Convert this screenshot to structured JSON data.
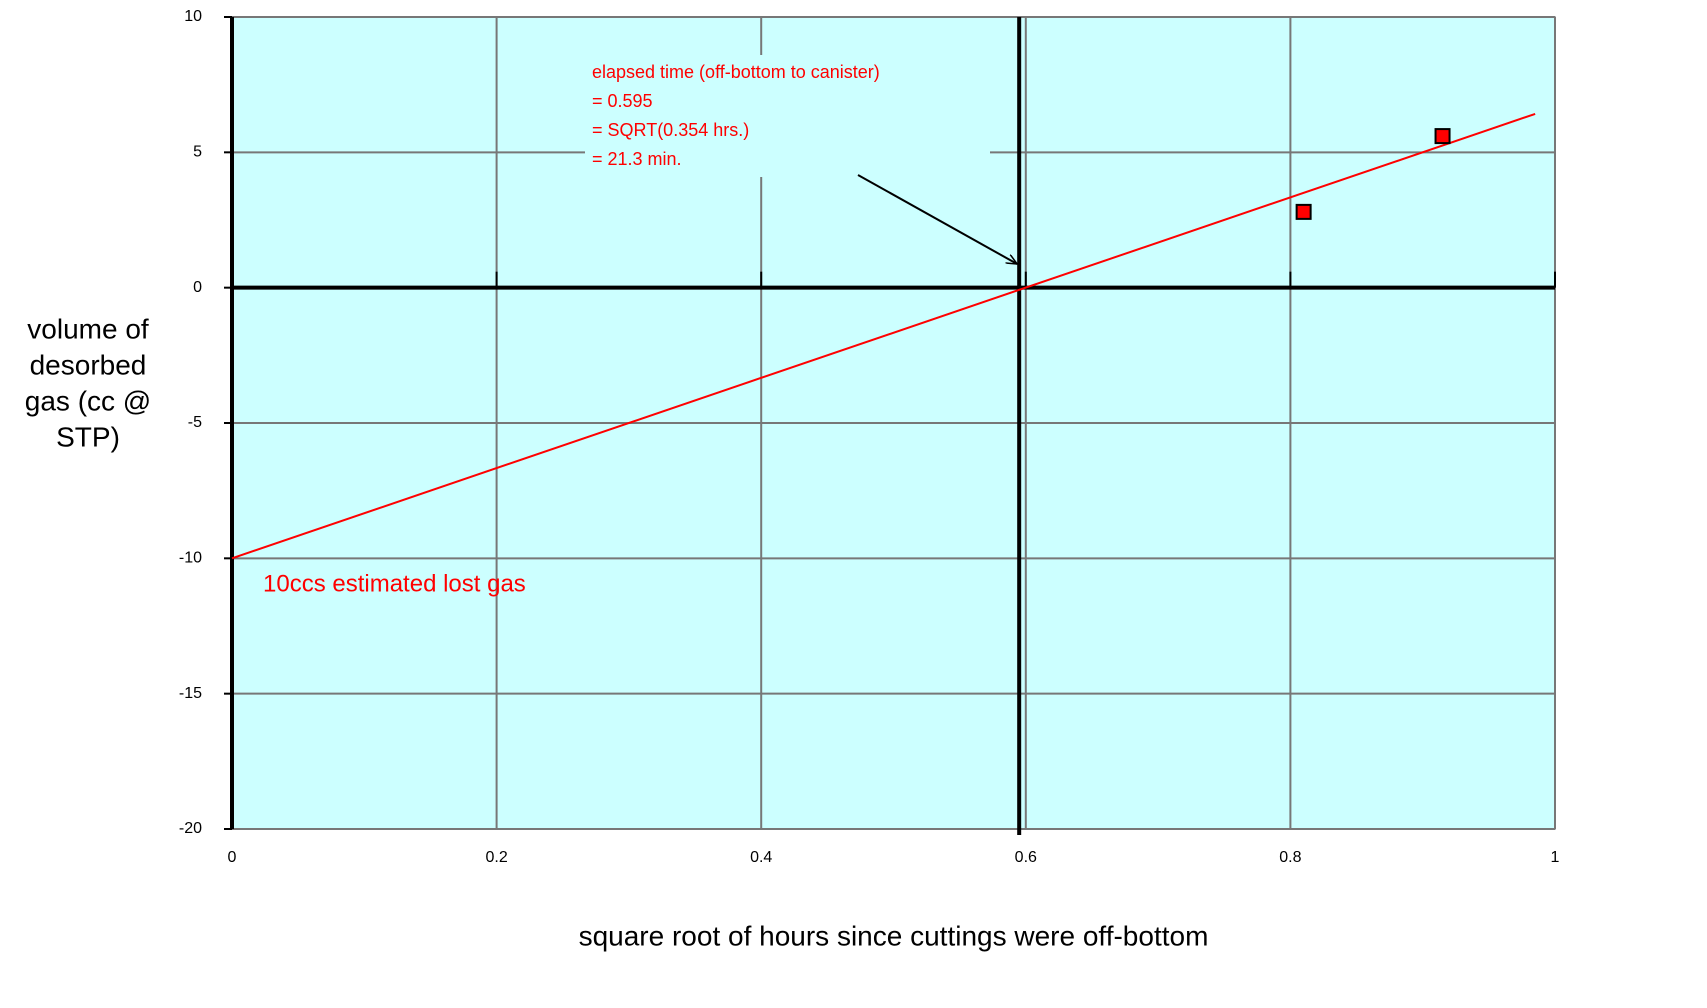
{
  "chart_data": {
    "type": "scatter",
    "xlabel": "square root of hours since cuttings were off-bottom",
    "ylabel_lines": [
      "volume of",
      "desorbed",
      "gas (cc @",
      "STP)"
    ],
    "xlim": [
      0,
      1
    ],
    "ylim": [
      -20,
      10
    ],
    "xticks": [
      0,
      0.2,
      0.4,
      0.6,
      0.8,
      1
    ],
    "yticks": [
      -20,
      -15,
      -10,
      -5,
      0,
      5,
      10
    ],
    "grid": true,
    "background": "#ccffff",
    "points": {
      "color": "#ff0000",
      "x": [
        0.81,
        0.915
      ],
      "values": [
        2.8,
        5.6
      ]
    },
    "fit_line": {
      "color": "#ff0000",
      "x": [
        0,
        0.985
      ],
      "values": [
        -10,
        6.42
      ]
    },
    "marker_x": 0.595,
    "annotation_lines": [
      "elapsed time (off-bottom to canister)",
      "= 0.595",
      "= SQRT(0.354 hrs.)",
      "= 21.3 min."
    ],
    "lost_gas_label": "10ccs estimated lost gas"
  }
}
